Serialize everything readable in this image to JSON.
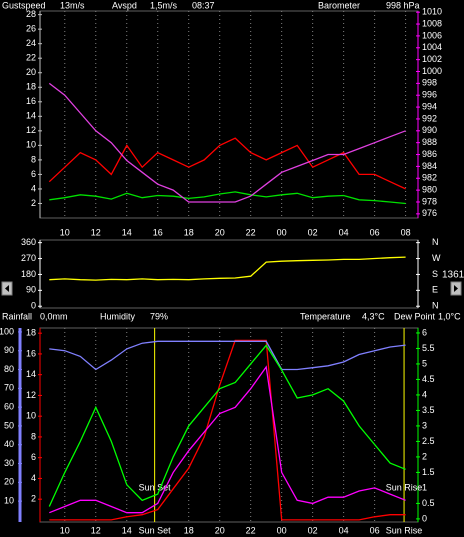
{
  "chart_data": [
    {
      "type": "line",
      "time": "08:37",
      "grid": true,
      "x": [
        9,
        10,
        11,
        12,
        13,
        14,
        15,
        16,
        17,
        18,
        19,
        20,
        21,
        22,
        23,
        24,
        25,
        26,
        27,
        28,
        29,
        30,
        31,
        32
      ],
      "xlim": [
        8.4,
        32.8
      ],
      "xticks": [
        10,
        12,
        14,
        16,
        18,
        20,
        22,
        {
          "value": 24,
          "label": "00"
        },
        {
          "value": 26,
          "label": "02"
        },
        {
          "value": 28,
          "label": "04"
        },
        {
          "value": 30,
          "label": "06"
        },
        {
          "value": 32,
          "label": "08"
        }
      ],
      "ylim": [
        0,
        28.5
      ],
      "yticks": [
        2,
        4,
        6,
        8,
        10,
        12,
        14,
        16,
        18,
        20,
        22,
        24,
        26,
        28
      ],
      "y2lim": [
        975.3,
        1010.2
      ],
      "y2ticks": [
        976,
        978,
        980,
        982,
        984,
        986,
        988,
        990,
        992,
        994,
        996,
        998,
        1000,
        1002,
        1004,
        1006,
        1008,
        1010
      ],
      "axis_colors": {
        "y": "#c0c0c0",
        "y2": "#ff00ff"
      },
      "series": [
        {
          "name": "Gustspeed",
          "current": "13m/s",
          "color": "#ff0000",
          "axis": "y",
          "values": [
            5,
            7,
            9,
            8,
            6,
            10,
            7,
            9,
            8,
            7,
            8,
            10,
            11,
            9,
            8,
            9,
            10,
            7,
            8,
            9,
            6,
            6,
            5,
            4
          ]
        },
        {
          "name": "Avspd",
          "current": "1,5m/s",
          "color": "#00e000",
          "axis": "y",
          "values": [
            2.5,
            2.8,
            3.2,
            3.0,
            2.6,
            3.4,
            2.8,
            3.1,
            3.0,
            2.7,
            2.9,
            3.3,
            3.6,
            3.2,
            2.9,
            3.2,
            3.4,
            2.8,
            3.0,
            3.1,
            2.5,
            2.4,
            2.2,
            2.0
          ]
        },
        {
          "name": "Barometer",
          "current": "998 hPa",
          "color": "#e040e0",
          "axis": "y2",
          "values": [
            998,
            996,
            993,
            990,
            988,
            985,
            983,
            981,
            980,
            978,
            978,
            978,
            978,
            979,
            981,
            983,
            984,
            985,
            986,
            986,
            987,
            988,
            989,
            990
          ]
        }
      ]
    },
    {
      "type": "line",
      "x": [
        9,
        10,
        11,
        12,
        13,
        14,
        15,
        16,
        17,
        18,
        19,
        20,
        21,
        22,
        23,
        24,
        25,
        26,
        27,
        28,
        29,
        30,
        31,
        32
      ],
      "xlim": [
        8.4,
        32.8
      ],
      "ylim": [
        -10,
        375
      ],
      "yticks": [
        0,
        90,
        180,
        270,
        360
      ],
      "y2lim": [
        -10,
        375
      ],
      "y2ticks": [
        {
          "value": 360,
          "label": "N"
        },
        {
          "value": 270,
          "label": "W"
        },
        {
          "value": 180,
          "label": "S"
        },
        {
          "value": 90,
          "label": "E"
        },
        {
          "value": 0,
          "label": "N"
        }
      ],
      "axis_colors": {
        "y": "#ffffff",
        "y2": "#ffffff"
      },
      "series": [
        {
          "color": "#ffff00",
          "axis": "y",
          "values": [
            150,
            155,
            150,
            148,
            152,
            150,
            155,
            150,
            152,
            150,
            155,
            158,
            160,
            170,
            250,
            255,
            258,
            260,
            262,
            265,
            265,
            270,
            275,
            278
          ]
        }
      ]
    },
    {
      "type": "line",
      "grid": true,
      "x": [
        9,
        10,
        11,
        12,
        13,
        14,
        15,
        16,
        17,
        18,
        19,
        20,
        21,
        22,
        23,
        24,
        25,
        26,
        27,
        28,
        29,
        30,
        31,
        32
      ],
      "xlim": [
        8.4,
        32.8
      ],
      "xticks": [
        10,
        12,
        14,
        18,
        20,
        22,
        {
          "value": 24,
          "label": "00"
        },
        {
          "value": 26,
          "label": "02"
        },
        {
          "value": 28,
          "label": "04"
        },
        {
          "value": 30,
          "label": "06"
        }
      ],
      "events": [
        {
          "label": "Sun Set",
          "x": 15.8
        },
        {
          "label": "Sun Rise",
          "x": 31.9
        }
      ],
      "event_color": "#ffff00",
      "ylim": [
        -0.2,
        18.5
      ],
      "yticks": [
        2,
        4,
        6,
        8,
        10,
        12,
        14,
        16,
        18
      ],
      "y2lim": [
        -0.1,
        6.16
      ],
      "y2ticks": [
        0,
        0.5,
        1,
        1.5,
        2,
        2.5,
        3,
        3.5,
        4,
        4.5,
        5,
        5.5,
        6
      ],
      "y3lim": [
        -1.1,
        102.1
      ],
      "y3ticks": [
        10,
        20,
        30,
        40,
        50,
        60,
        70,
        80,
        90,
        100
      ],
      "axis_colors": {
        "y": "#ff0000",
        "y2": "#00ff00",
        "y3": "#8080ff"
      },
      "series": [
        {
          "name": "Rainfall",
          "current": "0,0mm",
          "color": "#ff0000",
          "axis": "y",
          "values": [
            0,
            0,
            0,
            0,
            0,
            0.3,
            0.5,
            1,
            3,
            5,
            8,
            13,
            17.3,
            17.3,
            17.3,
            0,
            0,
            0,
            0,
            0,
            0,
            0.3,
            0.5,
            0.5
          ]
        },
        {
          "name": "Humidity",
          "current": "79%",
          "color": "#8080ff",
          "axis": "y3",
          "values": [
            91,
            90,
            87,
            80,
            85,
            91,
            94,
            95,
            95,
            95,
            95,
            95,
            95,
            95,
            95,
            80,
            80,
            81,
            82,
            84,
            88,
            90,
            92,
            93
          ]
        },
        {
          "name": "Temperature",
          "current": "4,3°C",
          "color": "#00ff00",
          "axis": "y2",
          "values": [
            0.4,
            1.5,
            2.5,
            3.6,
            2.5,
            1.1,
            0.6,
            0.8,
            2.0,
            3.0,
            3.6,
            4.2,
            4.4,
            5.0,
            5.6,
            4.8,
            3.9,
            4.0,
            4.2,
            3.8,
            3.0,
            2.4,
            1.8,
            1.6
          ]
        },
        {
          "name": "Dew Point",
          "current": "1,0°C",
          "color": "#ff00ff",
          "axis": "y2",
          "values": [
            0.2,
            0.4,
            0.6,
            0.6,
            0.4,
            0.2,
            0.2,
            0.5,
            1.5,
            2.2,
            2.8,
            3.4,
            3.6,
            4.2,
            4.9,
            1.5,
            0.6,
            0.5,
            0.7,
            0.7,
            0.9,
            1.0,
            0.8,
            0.6
          ]
        }
      ]
    }
  ],
  "controls": {
    "counter": "1361"
  }
}
